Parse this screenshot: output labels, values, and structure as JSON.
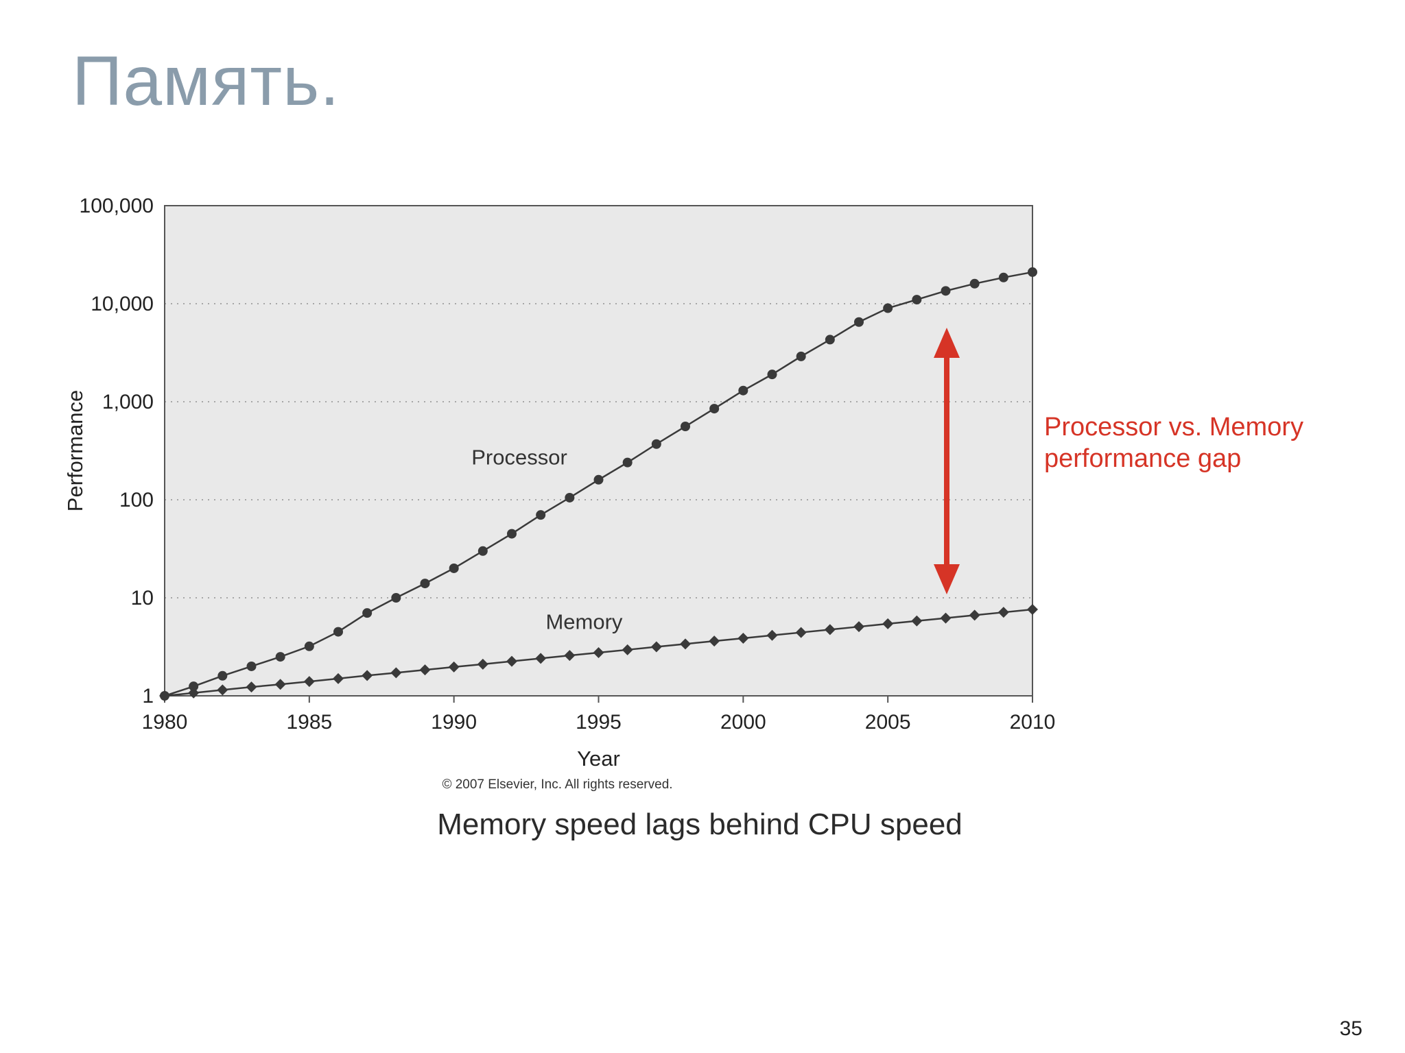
{
  "slide": {
    "title": "Память.",
    "title_color": "#8a9cab",
    "caption": "Memory speed lags behind CPU speed",
    "copyright": "© 2007 Elsevier, Inc. All rights reserved.",
    "page_number": "35"
  },
  "annotation": {
    "line1": "Processor vs. Memory",
    "line2": "performance gap",
    "color": "#d63426"
  },
  "chart_data": {
    "type": "line",
    "title": "",
    "xlabel": "Year",
    "ylabel": "Performance",
    "y_scale": "log",
    "grid": "dotted-horizontal",
    "xlim": [
      1980,
      2010
    ],
    "ylim": [
      1,
      100000
    ],
    "x_ticks": [
      1980,
      1985,
      1990,
      1995,
      2000,
      2005,
      2010
    ],
    "y_ticks": [
      1,
      10,
      100,
      1000,
      10000,
      100000
    ],
    "y_tick_labels": [
      "1",
      "10",
      "100",
      "1,000",
      "10,000",
      "100,000"
    ],
    "x": [
      1980,
      1981,
      1982,
      1983,
      1984,
      1985,
      1986,
      1987,
      1988,
      1989,
      1990,
      1991,
      1992,
      1993,
      1994,
      1995,
      1996,
      1997,
      1998,
      1999,
      2000,
      2001,
      2002,
      2003,
      2004,
      2005,
      2006,
      2007,
      2008,
      2009,
      2010
    ],
    "series": [
      {
        "name": "Processor",
        "marker": "circle",
        "values": [
          1,
          1.25,
          1.6,
          2,
          2.5,
          3.2,
          4.5,
          7,
          10,
          14,
          20,
          30,
          45,
          70,
          105,
          160,
          240,
          370,
          560,
          850,
          1300,
          1900,
          2900,
          4300,
          6500,
          9000,
          11000,
          13500,
          16000,
          18500,
          21000
        ]
      },
      {
        "name": "Memory",
        "marker": "diamond",
        "values": [
          1,
          1.07,
          1.15,
          1.23,
          1.31,
          1.4,
          1.5,
          1.61,
          1.72,
          1.84,
          1.97,
          2.1,
          2.25,
          2.41,
          2.58,
          2.76,
          2.95,
          3.16,
          3.38,
          3.62,
          3.87,
          4.14,
          4.43,
          4.74,
          5.07,
          5.43,
          5.81,
          6.21,
          6.65,
          7.11,
          7.61
        ]
      }
    ]
  }
}
